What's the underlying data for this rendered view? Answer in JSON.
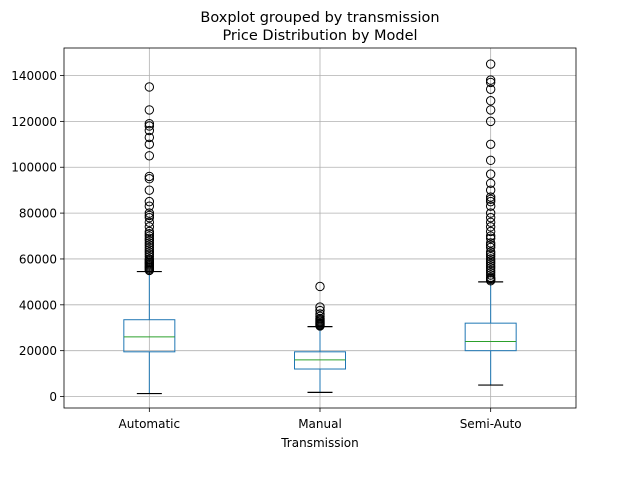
{
  "chart_data": {
    "type": "box",
    "title": "Boxplot grouped by transmission",
    "subtitle": "Price Distribution by Model",
    "xlabel": "Transmission",
    "ylabel": "",
    "ylim": [
      -5000,
      152000
    ],
    "yticks": [
      0,
      20000,
      40000,
      60000,
      80000,
      100000,
      120000,
      140000
    ],
    "ytick_labels": [
      "0",
      "20000",
      "40000",
      "60000",
      "80000",
      "100000",
      "120000",
      "140000"
    ],
    "grid": true,
    "colors": {
      "box": "#1f77b4",
      "median": "#2ca02c",
      "whisker": "#000000",
      "grid": "#b0b0b0",
      "frame": "#000000"
    },
    "categories": [
      "Automatic",
      "Manual",
      "Semi-Auto"
    ],
    "boxes": [
      {
        "label": "Automatic",
        "whisker_low": 1300,
        "q1": 19500,
        "median": 26000,
        "q3": 33500,
        "whisker_high": 54500,
        "outliers": [
          55000,
          55500,
          56000,
          56500,
          57000,
          57500,
          58000,
          58500,
          59000,
          59500,
          60000,
          61000,
          62000,
          63000,
          64000,
          65000,
          66000,
          67000,
          68000,
          69000,
          70000,
          71000,
          72000,
          74000,
          76000,
          78000,
          79000,
          80000,
          83000,
          85000,
          90000,
          95000,
          96000,
          105000,
          110000,
          113000,
          116000,
          118000,
          119000,
          125000,
          135000
        ]
      },
      {
        "label": "Manual",
        "whisker_low": 1800,
        "q1": 12000,
        "median": 16000,
        "q3": 19500,
        "whisker_high": 30500,
        "outliers": [
          30800,
          31200,
          31600,
          32000,
          32500,
          33000,
          33500,
          34000,
          35000,
          36000,
          37500,
          39000,
          48000
        ]
      },
      {
        "label": "Semi-Auto",
        "whisker_low": 5000,
        "q1": 20000,
        "median": 24000,
        "q3": 32000,
        "whisker_high": 50000,
        "outliers": [
          50500,
          51000,
          51500,
          52000,
          53000,
          54000,
          55000,
          56000,
          57000,
          58000,
          59000,
          60000,
          61000,
          62000,
          63000,
          65000,
          66000,
          67000,
          69000,
          70000,
          72000,
          74000,
          76000,
          78000,
          80000,
          83000,
          85000,
          86000,
          87000,
          90000,
          93000,
          97000,
          103000,
          110000,
          120000,
          125000,
          129000,
          134000,
          137000,
          138000,
          145000
        ]
      }
    ]
  }
}
